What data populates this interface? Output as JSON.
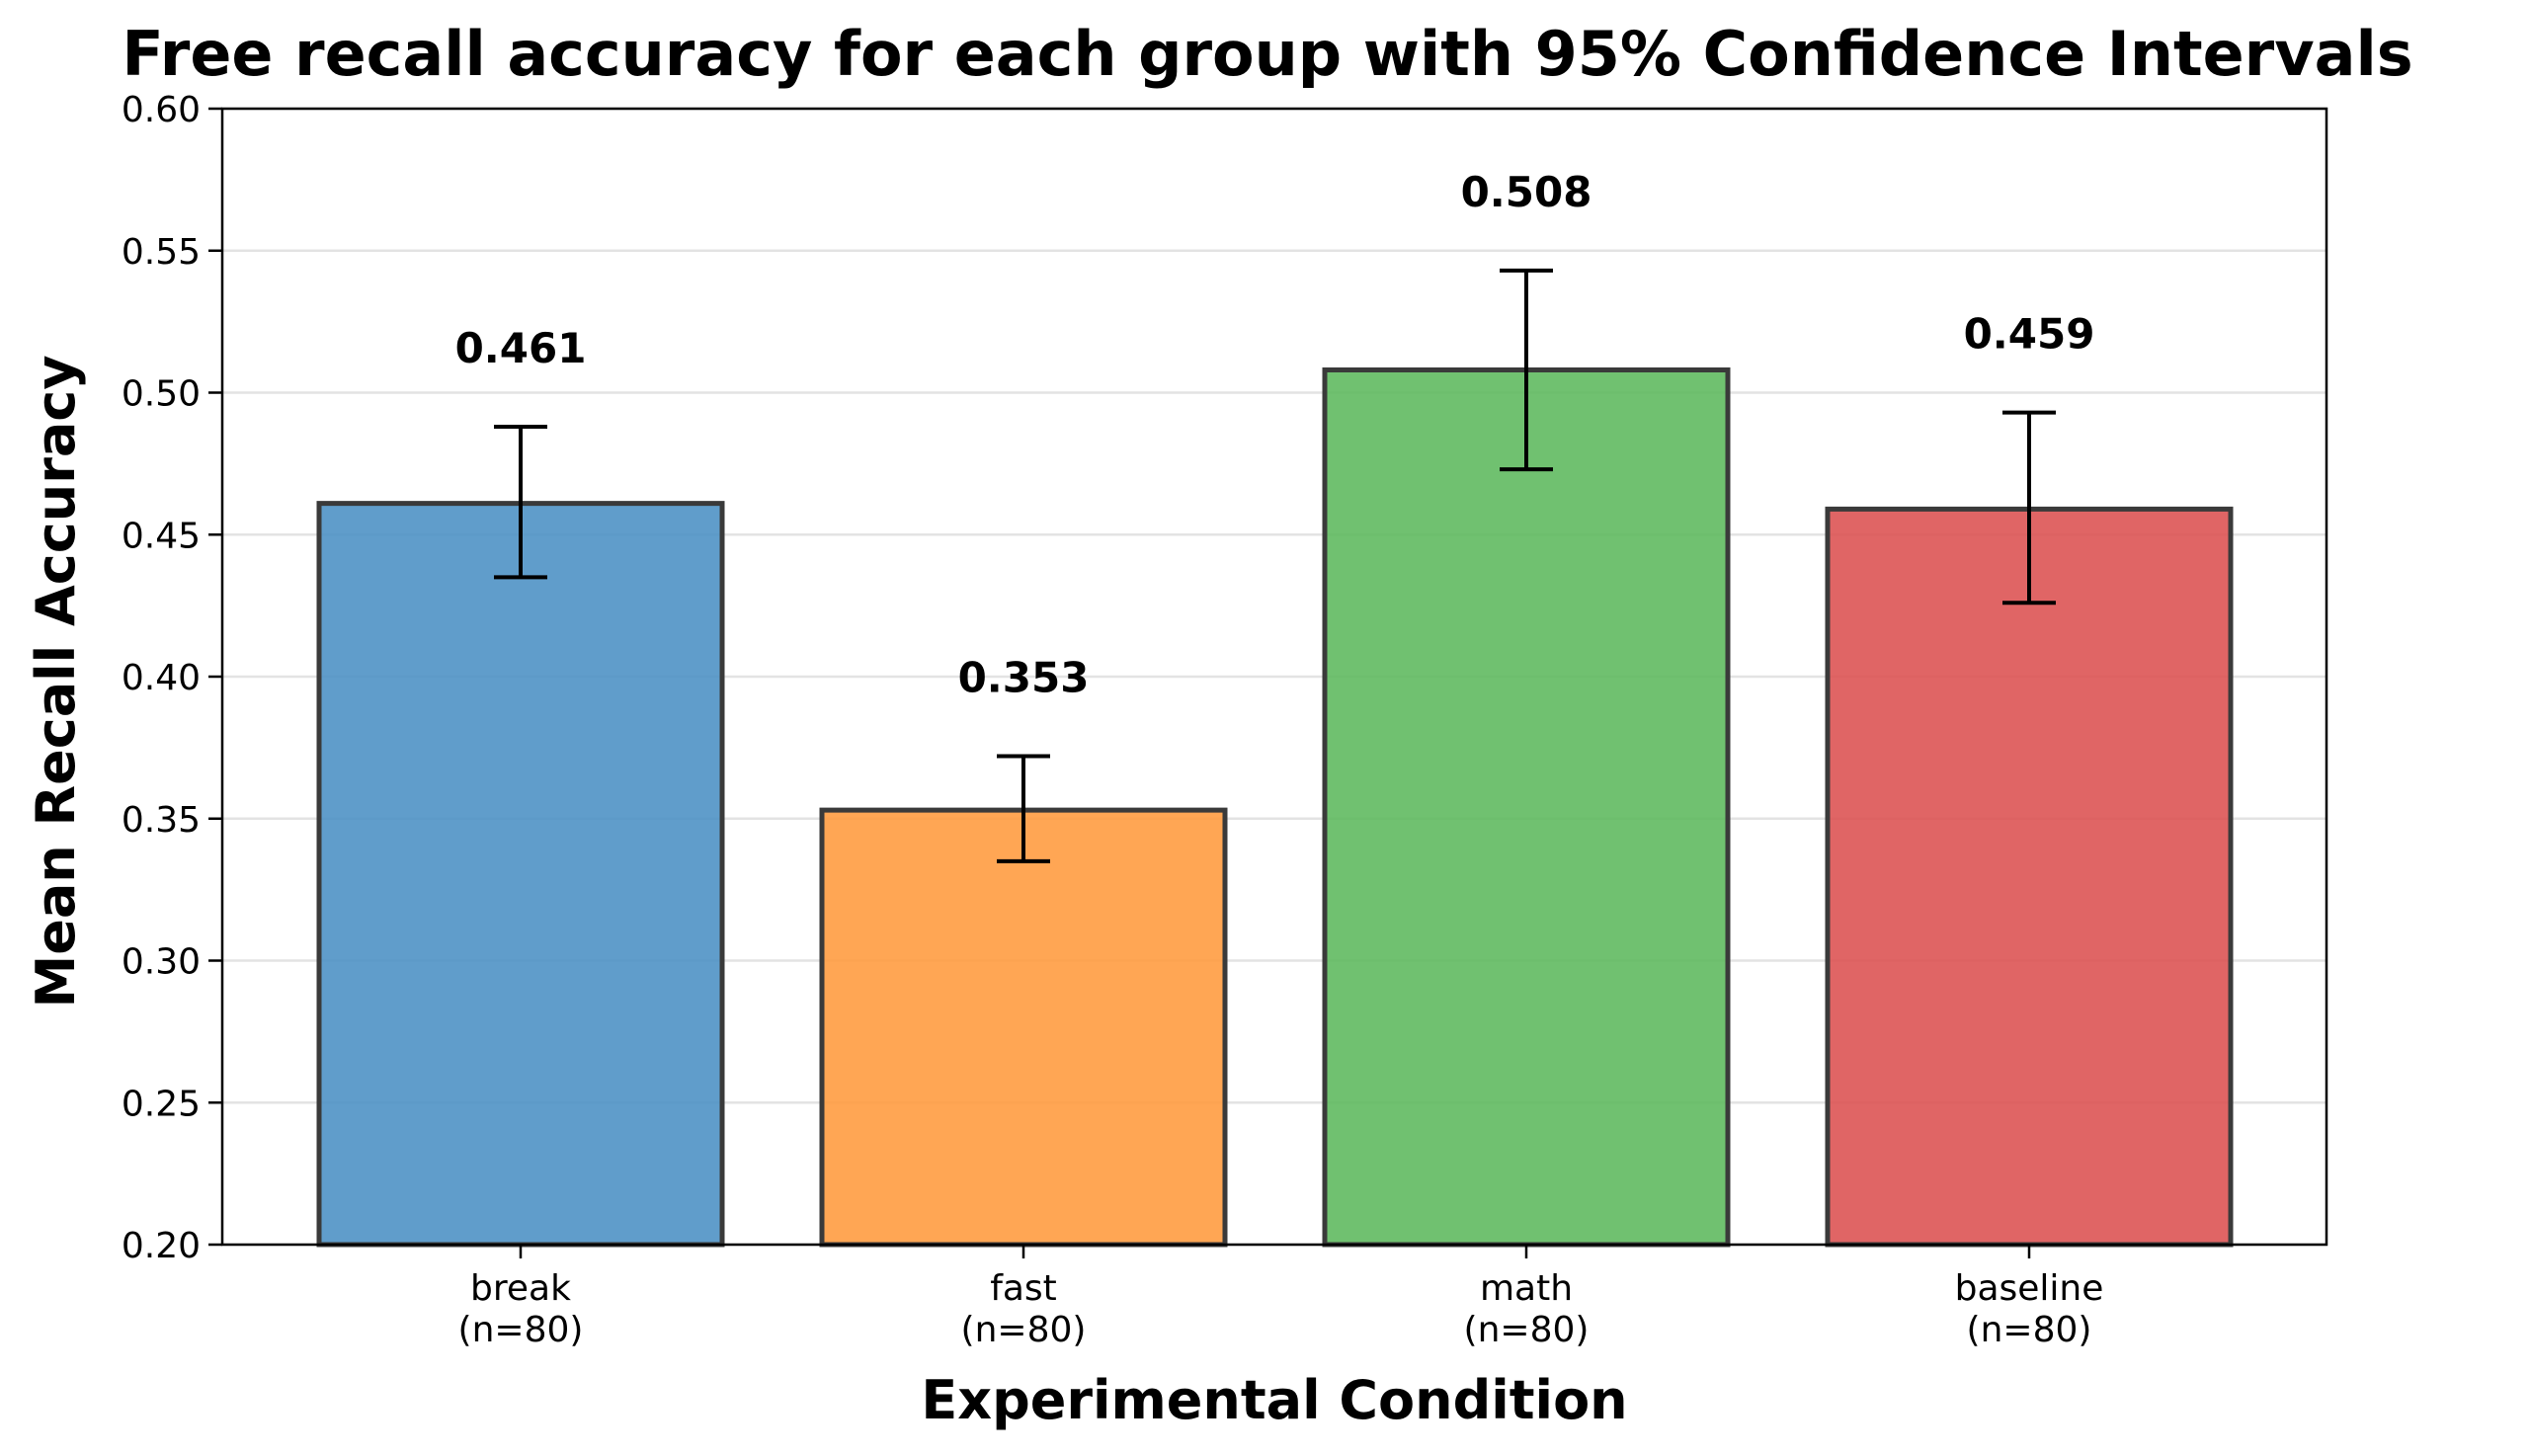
{
  "chart_data": {
    "type": "bar",
    "title": "Free recall accuracy for each group with 95% Confidence Intervals",
    "xlabel": "Experimental Condition",
    "ylabel": "Mean Recall Accuracy",
    "ylim": [
      0.2,
      0.6
    ],
    "yticks": [
      "0.20",
      "0.25",
      "0.30",
      "0.35",
      "0.40",
      "0.45",
      "0.50",
      "0.55",
      "0.60"
    ],
    "grid": "horizontal",
    "categories": [
      {
        "name": "break",
        "n_label": "(n=80)"
      },
      {
        "name": "fast",
        "n_label": "(n=80)"
      },
      {
        "name": "math",
        "n_label": "(n=80)"
      },
      {
        "name": "baseline",
        "n_label": "(n=80)"
      }
    ],
    "values": [
      0.461,
      0.353,
      0.508,
      0.459
    ],
    "value_labels": [
      "0.461",
      "0.353",
      "0.508",
      "0.459"
    ],
    "ci_lower": [
      0.435,
      0.335,
      0.473,
      0.426
    ],
    "ci_upper": [
      0.488,
      0.372,
      0.543,
      0.493
    ],
    "colors": [
      "#4a90c4",
      "#ff9a3c",
      "#5cb85c",
      "#dc5050"
    ]
  }
}
